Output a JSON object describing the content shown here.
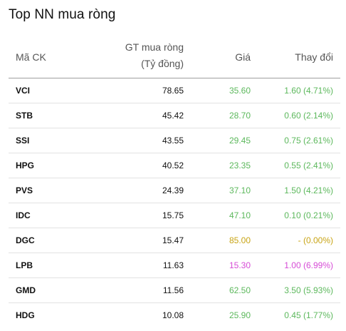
{
  "title": "Top NN mua ròng",
  "header": {
    "code": "Mã CK",
    "gt_line1": "GT mua ròng",
    "gt_line2": "(Tỷ đồng)",
    "price": "Giá",
    "change": "Thay đổi"
  },
  "colors": {
    "up": "#5cb85c",
    "ref": "#c8a415",
    "ceiling": "#d64bd6"
  },
  "rows": [
    {
      "code": "VCI",
      "gt": "78.65",
      "price": "35.60",
      "change": "1.60 (4.71%)",
      "status": "up"
    },
    {
      "code": "STB",
      "gt": "45.42",
      "price": "28.70",
      "change": "0.60 (2.14%)",
      "status": "up"
    },
    {
      "code": "SSI",
      "gt": "43.55",
      "price": "29.45",
      "change": "0.75 (2.61%)",
      "status": "up"
    },
    {
      "code": "HPG",
      "gt": "40.52",
      "price": "23.35",
      "change": "0.55 (2.41%)",
      "status": "up"
    },
    {
      "code": "PVS",
      "gt": "24.39",
      "price": "37.10",
      "change": "1.50 (4.21%)",
      "status": "up"
    },
    {
      "code": "IDC",
      "gt": "15.75",
      "price": "47.10",
      "change": "0.10 (0.21%)",
      "status": "up"
    },
    {
      "code": "DGC",
      "gt": "15.47",
      "price": "85.00",
      "change": "- (0.00%)",
      "status": "ref"
    },
    {
      "code": "LPB",
      "gt": "11.63",
      "price": "15.30",
      "change": "1.00 (6.99%)",
      "status": "ceiling"
    },
    {
      "code": "GMD",
      "gt": "11.56",
      "price": "62.50",
      "change": "3.50 (5.93%)",
      "status": "up"
    },
    {
      "code": "HDG",
      "gt": "10.08",
      "price": "25.90",
      "change": "0.45 (1.77%)",
      "status": "up"
    }
  ]
}
